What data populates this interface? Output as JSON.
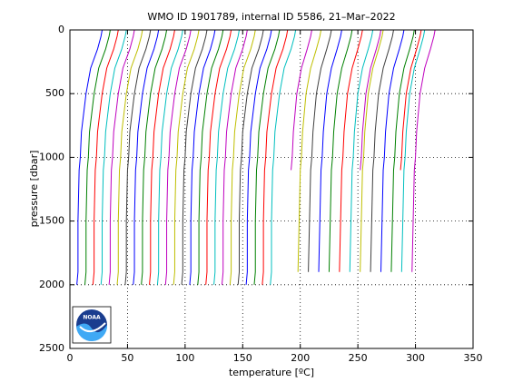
{
  "chart_data": {
    "type": "line",
    "title": "WMO ID 1901789, internal ID 5586, 21–Mar–2022",
    "xlabel": "temperature [ºC]",
    "ylabel": "pressure [dbar]",
    "xlim": [
      0,
      350
    ],
    "xticks": [
      0,
      50,
      100,
      150,
      200,
      250,
      300,
      350
    ],
    "ylim": [
      0,
      2500
    ],
    "yticks": [
      0,
      500,
      1000,
      1500,
      2000,
      2500
    ],
    "y_reversed": true,
    "grid": true,
    "pressure": [
      0,
      50,
      150,
      300,
      500,
      800,
      1000,
      1100,
      1500,
      1900,
      2000
    ],
    "series": [
      {
        "color": "#0000ff",
        "values": [
          28,
          27,
          24,
          18,
          14,
          10,
          9,
          8,
          7,
          7,
          6
        ]
      },
      {
        "color": "#008000",
        "values": [
          35,
          34,
          31,
          25,
          21,
          17,
          16,
          15,
          14,
          14,
          13
        ]
      },
      {
        "color": "#ff0000",
        "values": [
          42,
          41,
          38,
          32,
          28,
          24,
          23,
          22,
          21,
          21,
          20
        ]
      },
      {
        "color": "#00bfbf",
        "values": [
          49,
          48,
          45,
          39,
          35,
          31,
          30,
          29,
          28,
          28,
          27
        ]
      },
      {
        "color": "#bf00bf",
        "values": [
          56,
          55,
          52,
          46,
          42,
          38,
          37,
          36,
          35,
          35,
          34
        ]
      },
      {
        "color": "#bfbf00",
        "values": [
          63,
          62,
          59,
          53,
          49,
          45,
          44,
          43,
          42,
          42,
          41
        ]
      },
      {
        "color": "#404040",
        "values": [
          70,
          69,
          66,
          60,
          56,
          52,
          51,
          50,
          49,
          49,
          48
        ]
      },
      {
        "color": "#0000ff",
        "values": [
          77,
          76,
          73,
          67,
          63,
          59,
          58,
          57,
          56,
          56,
          55
        ]
      },
      {
        "color": "#008000",
        "values": [
          84,
          83,
          80,
          74,
          70,
          66,
          65,
          64,
          63,
          63,
          62
        ]
      },
      {
        "color": "#ff0000",
        "values": [
          91,
          90,
          87,
          81,
          77,
          73,
          72,
          71,
          70,
          70,
          69
        ]
      },
      {
        "color": "#00bfbf",
        "values": [
          98,
          97,
          94,
          88,
          84,
          80,
          79,
          78,
          77,
          77,
          76
        ]
      },
      {
        "color": "#bf00bf",
        "values": [
          105,
          104,
          101,
          95,
          91,
          87,
          86,
          85,
          84,
          84,
          83
        ]
      },
      {
        "color": "#bfbf00",
        "values": [
          112,
          111,
          108,
          102,
          98,
          94,
          93,
          92,
          91,
          91,
          90
        ]
      },
      {
        "color": "#404040",
        "values": [
          119,
          118,
          115,
          109,
          105,
          101,
          100,
          99,
          98,
          98,
          97
        ]
      },
      {
        "color": "#0000ff",
        "values": [
          126,
          125,
          122,
          116,
          112,
          108,
          107,
          106,
          105,
          105,
          104
        ]
      },
      {
        "color": "#008000",
        "values": [
          133,
          132,
          129,
          123,
          119,
          115,
          114,
          113,
          112,
          112,
          111
        ]
      },
      {
        "color": "#ff0000",
        "values": [
          140,
          139,
          136,
          130,
          126,
          122,
          121,
          120,
          119,
          119,
          118
        ]
      },
      {
        "color": "#00bfbf",
        "values": [
          147,
          146,
          143,
          137,
          133,
          129,
          128,
          127,
          126,
          126,
          125
        ]
      },
      {
        "color": "#bf00bf",
        "values": [
          154,
          153,
          150,
          144,
          140,
          136,
          135,
          134,
          133,
          133,
          132
        ]
      },
      {
        "color": "#bfbf00",
        "values": [
          161,
          160,
          157,
          151,
          147,
          143,
          142,
          141,
          140,
          140,
          139
        ]
      },
      {
        "color": "#404040",
        "values": [
          168,
          167,
          164,
          158,
          154,
          150,
          149,
          148,
          147,
          147,
          146
        ]
      },
      {
        "color": "#0000ff",
        "values": [
          175,
          174,
          171,
          165,
          161,
          157,
          156,
          155,
          154,
          154,
          153
        ]
      },
      {
        "color": "#008000",
        "values": [
          182,
          181,
          178,
          172,
          168,
          164,
          163,
          162,
          161,
          161,
          160
        ]
      },
      {
        "color": "#ff0000",
        "values": [
          189,
          188,
          185,
          179,
          175,
          171,
          170,
          169,
          168,
          168,
          167
        ]
      },
      {
        "color": "#00bfbf",
        "values": [
          196,
          195,
          192,
          186,
          182,
          178,
          177,
          176,
          175,
          175,
          174
        ]
      },
      {
        "color": "#bf00bf",
        "values": [
          210,
          209,
          206,
          201,
          197,
          194,
          193,
          192,
          null,
          null,
          null
        ]
      },
      {
        "color": "#bfbf00",
        "values": [
          218,
          217,
          214,
          209,
          205,
          202,
          201,
          200,
          199,
          198,
          null
        ]
      },
      {
        "color": "#404040",
        "values": [
          227,
          226,
          223,
          218,
          214,
          211,
          210,
          209,
          208,
          207,
          null
        ]
      },
      {
        "color": "#0000ff",
        "values": [
          236,
          235,
          232,
          227,
          223,
          220,
          219,
          218,
          217,
          216,
          null
        ]
      },
      {
        "color": "#008000",
        "values": [
          245,
          244,
          241,
          236,
          232,
          229,
          228,
          227,
          226,
          225,
          null
        ]
      },
      {
        "color": "#ff0000",
        "values": [
          254,
          253,
          250,
          245,
          241,
          238,
          237,
          236,
          235,
          234,
          null
        ]
      },
      {
        "color": "#00bfbf",
        "values": [
          263,
          262,
          259,
          254,
          250,
          247,
          246,
          245,
          244,
          243,
          null
        ]
      },
      {
        "color": "#bf00bf",
        "values": [
          270,
          269,
          266,
          261,
          257,
          254,
          253,
          252,
          null,
          null,
          null
        ]
      },
      {
        "color": "#bfbf00",
        "values": [
          272,
          271,
          268,
          263,
          259,
          256,
          255,
          254,
          253,
          252,
          null
        ]
      },
      {
        "color": "#404040",
        "values": [
          281,
          280,
          277,
          272,
          268,
          265,
          264,
          263,
          262,
          261,
          null
        ]
      },
      {
        "color": "#0000ff",
        "values": [
          290,
          289,
          286,
          281,
          277,
          274,
          273,
          272,
          271,
          270,
          null
        ]
      },
      {
        "color": "#008000",
        "values": [
          299,
          298,
          295,
          290,
          286,
          283,
          282,
          281,
          280,
          279,
          null
        ]
      },
      {
        "color": "#ff0000",
        "values": [
          305,
          304,
          301,
          296,
          292,
          289,
          288,
          287,
          null,
          null,
          null
        ]
      },
      {
        "color": "#00bfbf",
        "values": [
          308,
          307,
          304,
          299,
          295,
          292,
          291,
          290,
          289,
          288,
          null
        ]
      },
      {
        "color": "#bf00bf",
        "values": [
          317,
          316,
          313,
          308,
          304,
          301,
          300,
          299,
          298,
          297,
          null
        ]
      }
    ]
  },
  "logo_text": "NOAA"
}
